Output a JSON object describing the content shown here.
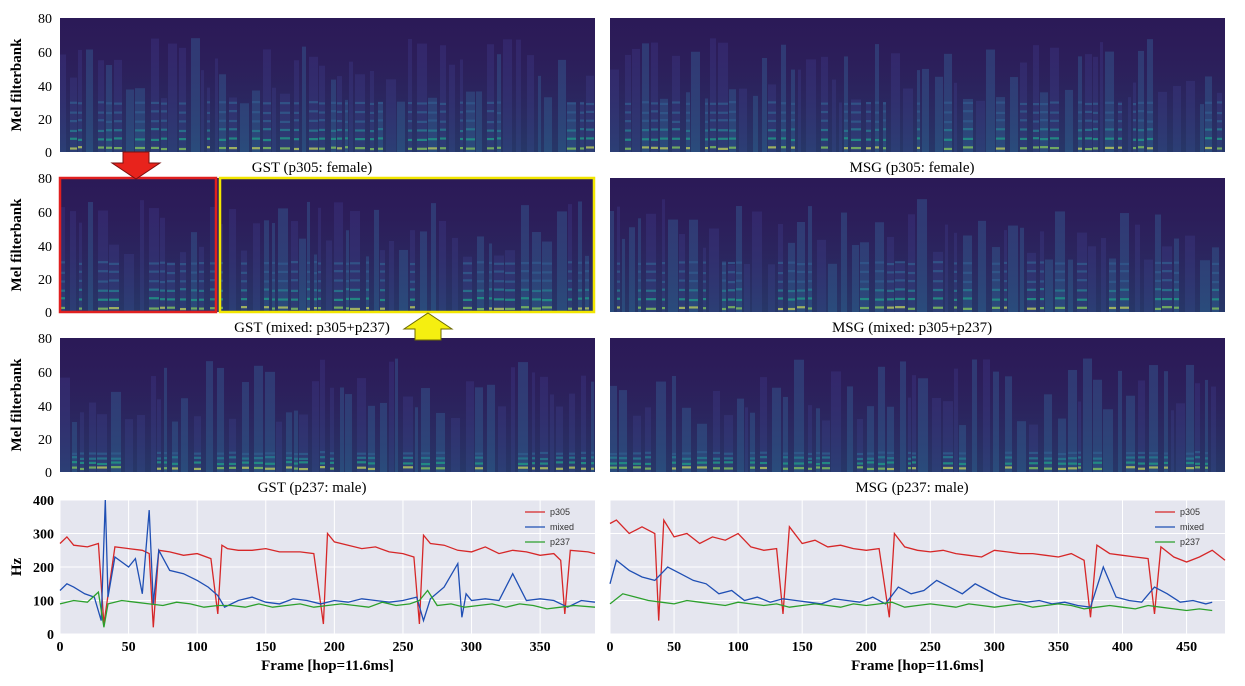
{
  "colors": {
    "p305": "#d62728",
    "mixed": "#1f4fb4",
    "p237": "#2ca02c",
    "spec_bg": "#2b1a57",
    "plot_bg": "#e5e6ef",
    "red_box": "#e02020",
    "yellow_box": "#f2e600"
  },
  "chart_data": [
    {
      "type": "heatmap",
      "id": "gst-p305",
      "title": "GST (p305: female)",
      "ylabel": "Mel filterbank",
      "yticks": [
        "0",
        "20",
        "40",
        "60",
        "80"
      ],
      "ylim": [
        0,
        80
      ]
    },
    {
      "type": "heatmap",
      "id": "msg-p305",
      "title": "MSG (p305: female)",
      "ylabel": "",
      "yticks": [],
      "ylim": [
        0,
        80
      ]
    },
    {
      "type": "heatmap",
      "id": "gst-mixed",
      "title": "GST (mixed: p305+p237)",
      "ylabel": "Mel filterbank",
      "yticks": [
        "0",
        "20",
        "40",
        "60",
        "80"
      ],
      "ylim": [
        0,
        80
      ]
    },
    {
      "type": "heatmap",
      "id": "msg-mixed",
      "title": "MSG (mixed: p305+p237)",
      "ylabel": "",
      "yticks": [],
      "ylim": [
        0,
        80
      ]
    },
    {
      "type": "heatmap",
      "id": "gst-p237",
      "title": "GST (p237: male)",
      "ylabel": "Mel filterbank",
      "yticks": [
        "0",
        "20",
        "40",
        "60",
        "80"
      ],
      "ylim": [
        0,
        80
      ]
    },
    {
      "type": "heatmap",
      "id": "msg-p237",
      "title": "MSG (p237: male)",
      "ylabel": "",
      "yticks": [],
      "ylim": [
        0,
        80
      ]
    },
    {
      "type": "line",
      "id": "gst-f0",
      "ylabel": "Hz",
      "xlabel": "Frame [hop=11.6ms]",
      "xlim": [
        0,
        390
      ],
      "ylim": [
        0,
        400
      ],
      "xticks": [
        0,
        50,
        100,
        150,
        200,
        250,
        300,
        350
      ],
      "yticks": [
        0,
        100,
        200,
        300,
        400
      ],
      "legend": [
        "p305",
        "mixed",
        "p237"
      ],
      "series": [
        {
          "name": "p305",
          "x": [
            0,
            5,
            10,
            20,
            28,
            32,
            40,
            50,
            60,
            65,
            68,
            72,
            80,
            90,
            100,
            110,
            115,
            118,
            122,
            130,
            140,
            150,
            160,
            175,
            185,
            192,
            195,
            200,
            210,
            220,
            230,
            240,
            250,
            258,
            262,
            265,
            270,
            280,
            290,
            300,
            310,
            320,
            330,
            340,
            350,
            360,
            365,
            368,
            372,
            385,
            390
          ],
          "values": [
            270,
            290,
            265,
            260,
            270,
            30,
            260,
            255,
            250,
            240,
            20,
            250,
            245,
            235,
            240,
            225,
            60,
            265,
            255,
            250,
            250,
            255,
            245,
            245,
            240,
            30,
            300,
            275,
            265,
            255,
            260,
            245,
            240,
            230,
            30,
            295,
            270,
            265,
            250,
            245,
            260,
            240,
            250,
            245,
            235,
            240,
            220,
            60,
            250,
            245,
            240
          ]
        },
        {
          "name": "mixed",
          "x": [
            0,
            5,
            10,
            18,
            25,
            30,
            33,
            35,
            40,
            50,
            55,
            60,
            65,
            68,
            72,
            80,
            90,
            100,
            108,
            115,
            120,
            130,
            140,
            150,
            160,
            170,
            180,
            190,
            200,
            210,
            220,
            230,
            240,
            250,
            260,
            265,
            270,
            280,
            290,
            293,
            296,
            300,
            310,
            320,
            330,
            340,
            350,
            360,
            370,
            380,
            390
          ],
          "values": [
            130,
            150,
            140,
            120,
            110,
            40,
            400,
            110,
            230,
            200,
            225,
            120,
            370,
            90,
            250,
            190,
            180,
            160,
            140,
            115,
            80,
            100,
            110,
            95,
            90,
            105,
            100,
            90,
            100,
            95,
            105,
            100,
            95,
            100,
            110,
            40,
            105,
            140,
            210,
            50,
            120,
            100,
            105,
            100,
            180,
            100,
            105,
            100,
            80,
            100,
            95
          ]
        },
        {
          "name": "p237",
          "x": [
            0,
            10,
            20,
            28,
            32,
            35,
            45,
            55,
            65,
            75,
            85,
            95,
            105,
            115,
            125,
            135,
            145,
            155,
            165,
            175,
            185,
            195,
            205,
            215,
            225,
            235,
            245,
            255,
            262,
            268,
            275,
            285,
            295,
            305,
            315,
            325,
            335,
            345,
            355,
            365,
            375,
            390
          ],
          "values": [
            90,
            100,
            95,
            125,
            20,
            90,
            100,
            95,
            90,
            85,
            95,
            90,
            80,
            85,
            85,
            80,
            90,
            80,
            85,
            90,
            80,
            85,
            90,
            85,
            80,
            95,
            85,
            90,
            100,
            130,
            85,
            90,
            80,
            85,
            90,
            80,
            90,
            85,
            75,
            80,
            85,
            80
          ]
        }
      ]
    },
    {
      "type": "line",
      "id": "msg-f0",
      "ylabel": "",
      "xlabel": "Frame [hop=11.6ms]",
      "xlim": [
        0,
        480
      ],
      "ylim": [
        0,
        400
      ],
      "xticks": [
        0,
        50,
        100,
        150,
        200,
        250,
        300,
        350,
        400,
        450
      ],
      "yticks": [
        0,
        100,
        200,
        300,
        400
      ],
      "legend": [
        "p305",
        "mixed",
        "p237"
      ],
      "series": [
        {
          "name": "p305",
          "x": [
            0,
            5,
            15,
            25,
            35,
            38,
            42,
            50,
            60,
            70,
            80,
            90,
            100,
            110,
            120,
            130,
            135,
            140,
            150,
            160,
            170,
            180,
            190,
            200,
            210,
            218,
            222,
            230,
            240,
            250,
            260,
            270,
            280,
            290,
            300,
            310,
            320,
            330,
            340,
            350,
            360,
            370,
            375,
            380,
            390,
            400,
            410,
            420,
            425,
            430,
            440,
            450,
            460,
            470,
            480
          ],
          "values": [
            330,
            340,
            300,
            320,
            300,
            40,
            340,
            290,
            300,
            270,
            290,
            280,
            300,
            260,
            250,
            255,
            60,
            320,
            270,
            280,
            260,
            265,
            255,
            250,
            255,
            50,
            300,
            260,
            250,
            245,
            250,
            240,
            235,
            230,
            250,
            245,
            240,
            240,
            235,
            230,
            240,
            220,
            50,
            265,
            240,
            235,
            230,
            225,
            60,
            260,
            230,
            215,
            230,
            250,
            220
          ]
        },
        {
          "name": "mixed",
          "x": [
            0,
            5,
            15,
            25,
            35,
            45,
            55,
            65,
            75,
            85,
            95,
            105,
            115,
            125,
            135,
            145,
            155,
            165,
            175,
            185,
            195,
            205,
            215,
            225,
            235,
            245,
            255,
            265,
            275,
            285,
            295,
            305,
            315,
            325,
            335,
            345,
            355,
            365,
            375,
            385,
            395,
            405,
            415,
            425,
            435,
            445,
            455,
            465,
            470
          ],
          "values": [
            150,
            220,
            190,
            170,
            160,
            200,
            180,
            160,
            150,
            120,
            130,
            100,
            110,
            95,
            105,
            100,
            95,
            90,
            105,
            100,
            95,
            110,
            90,
            140,
            120,
            130,
            160,
            140,
            120,
            150,
            130,
            110,
            100,
            95,
            100,
            90,
            95,
            85,
            80,
            200,
            110,
            100,
            95,
            140,
            120,
            95,
            100,
            90,
            95
          ]
        },
        {
          "name": "p237",
          "x": [
            0,
            10,
            20,
            30,
            40,
            50,
            60,
            70,
            80,
            90,
            100,
            110,
            120,
            130,
            140,
            150,
            160,
            170,
            180,
            190,
            200,
            210,
            220,
            230,
            240,
            250,
            260,
            270,
            280,
            290,
            300,
            310,
            320,
            330,
            340,
            350,
            360,
            370,
            380,
            390,
            400,
            410,
            420,
            430,
            440,
            450,
            460,
            470
          ],
          "values": [
            90,
            120,
            110,
            100,
            95,
            90,
            100,
            95,
            90,
            85,
            95,
            90,
            85,
            90,
            80,
            85,
            90,
            85,
            80,
            90,
            85,
            90,
            95,
            80,
            85,
            90,
            85,
            80,
            90,
            85,
            80,
            85,
            90,
            80,
            85,
            90,
            85,
            75,
            80,
            85,
            80,
            75,
            85,
            80,
            75,
            70,
            75,
            70
          ]
        }
      ]
    }
  ]
}
